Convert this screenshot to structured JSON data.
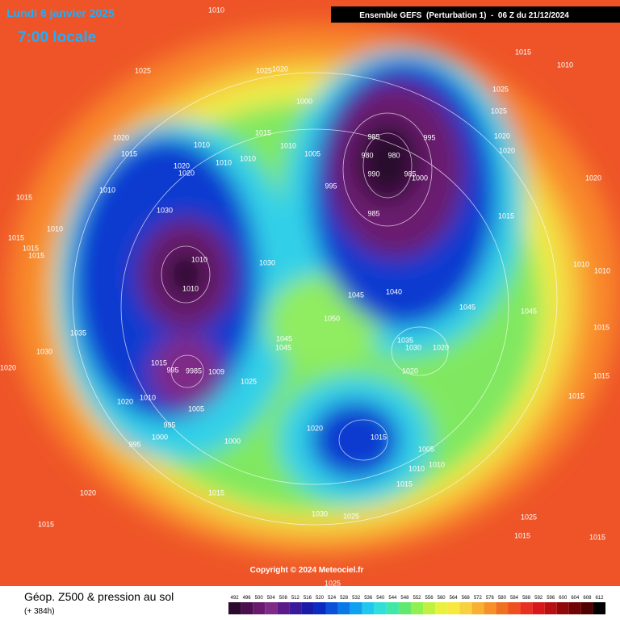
{
  "header": {
    "date": "Lundi 6 janvier 2025",
    "time": "7:00 locale",
    "run": "Ensemble GEFS  (Perturbation 1)  -  06 Z du 21/12/2024"
  },
  "copyright": "Copyright © 2024 Meteociel.fr",
  "footer": {
    "title": "Géop. Z500 & pression au sol",
    "lead": "(+ 384h)"
  },
  "colorscale": {
    "values": [
      "492",
      "496",
      "500",
      "504",
      "508",
      "512",
      "516",
      "520",
      "524",
      "528",
      "532",
      "536",
      "540",
      "544",
      "548",
      "552",
      "556",
      "560",
      "564",
      "568",
      "572",
      "576",
      "580",
      "584",
      "588",
      "592",
      "596",
      "600",
      "604",
      "608",
      "612"
    ],
    "colors": [
      "#2b0a2e",
      "#4a0f4f",
      "#6a1a6e",
      "#7f2a86",
      "#5a1a8a",
      "#3a1a9a",
      "#1a1aa8",
      "#0a2ac0",
      "#0a50d8",
      "#0a78e8",
      "#10a0f0",
      "#20c8f0",
      "#30e0d8",
      "#40e8a8",
      "#60e870",
      "#90f050",
      "#c0f040",
      "#e8f040",
      "#f8e840",
      "#f8d040",
      "#f8b030",
      "#f89028",
      "#f07020",
      "#f05020",
      "#e83020",
      "#d81818",
      "#b81010",
      "#900808",
      "#700404",
      "#500202",
      "#000000"
    ]
  },
  "isobar_labels": [
    "1010",
    "1025",
    "1025",
    "1020",
    "1000",
    "1015",
    "1010",
    "1025",
    "1025",
    "1020",
    "1020",
    "1020",
    "1015",
    "1015",
    "1010",
    "1010",
    "1005",
    "985",
    "995",
    "980",
    "980",
    "990",
    "985",
    "1000",
    "995",
    "985",
    "1020",
    "1020",
    "1010",
    "1010",
    "1010",
    "1015",
    "1030",
    "1010",
    "1015",
    "1015",
    "1015",
    "1015",
    "1020",
    "1010",
    "1030",
    "1010",
    "1040",
    "1045",
    "1045",
    "1045",
    "1050",
    "1015",
    "1035",
    "1035",
    "1030",
    "1045",
    "1045",
    "1030",
    "1020",
    "1015",
    "995",
    "9985",
    "1009",
    "1020",
    "1025",
    "1020",
    "1015",
    "1020",
    "1010",
    "1005",
    "1015",
    "995",
    "1020",
    "1015",
    "1000",
    "995",
    "1000",
    "1005",
    "1010",
    "1010",
    "1015",
    "1020",
    "1015",
    "1030",
    "1025",
    "1025",
    "1015",
    "1015",
    "1015",
    "1025",
    "1010",
    "1010"
  ]
}
